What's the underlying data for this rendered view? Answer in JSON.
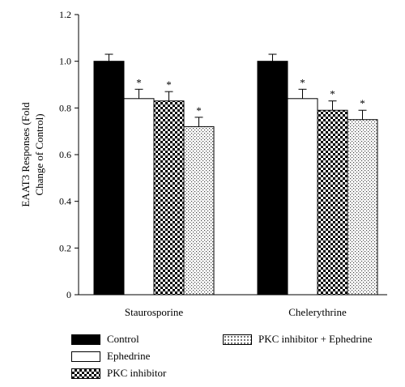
{
  "chart_data": {
    "type": "bar",
    "ylabel": "EAAT3 Responses (Fold Change of Control)",
    "ylim": [
      0,
      1.2
    ],
    "yticks": [
      "0",
      "0.2",
      "0.4",
      "0.6",
      "0.8",
      "1.0",
      "1.2"
    ],
    "categories": [
      "Staurosporine",
      "Chelerythrine"
    ],
    "series": [
      {
        "name": "Control",
        "values": [
          1.0,
          1.0
        ],
        "errors": [
          0.03,
          0.03
        ],
        "significance": [
          "",
          ""
        ],
        "pattern": "solid-black"
      },
      {
        "name": "Ephedrine",
        "values": [
          0.84,
          0.84
        ],
        "errors": [
          0.04,
          0.04
        ],
        "significance": [
          "*",
          "*"
        ],
        "pattern": "white"
      },
      {
        "name": "PKC inhibitor",
        "values": [
          0.83,
          0.79
        ],
        "errors": [
          0.04,
          0.04
        ],
        "significance": [
          "*",
          "*"
        ],
        "pattern": "checker"
      },
      {
        "name": "PKC inhibitor + Ephedrine",
        "values": [
          0.72,
          0.75
        ],
        "errors": [
          0.04,
          0.04
        ],
        "significance": [
          "*",
          "*"
        ],
        "pattern": "dotted"
      }
    ],
    "legend_position": "bottom"
  }
}
